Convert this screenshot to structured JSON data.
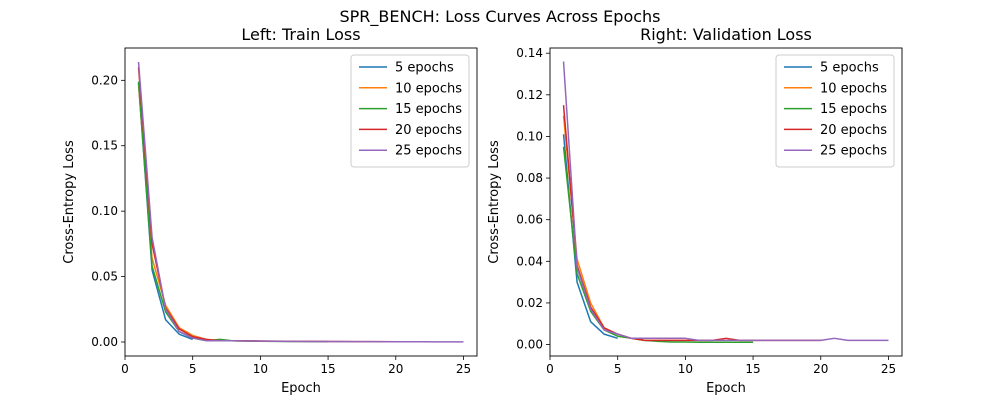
{
  "figure": {
    "suptitle": "SPR_BENCH: Loss Curves Across Epochs"
  },
  "chart_data": [
    {
      "type": "line",
      "title": "Left: Train Loss",
      "xlabel": "Epoch",
      "ylabel": "Cross-Entropy Loss",
      "xlim": [
        0,
        26
      ],
      "ylim": [
        -0.0107,
        0.2247
      ],
      "xticks": [
        0,
        5,
        10,
        15,
        20,
        25
      ],
      "yticks": [
        0.0,
        0.05,
        0.1,
        0.15,
        0.2
      ],
      "ytick_labels": [
        "0.00",
        "0.05",
        "0.10",
        "0.15",
        "0.20"
      ],
      "legend_position": "top-right",
      "series": [
        {
          "name": "5 epochs",
          "color": "#1f77b4",
          "x": [
            1,
            2,
            3,
            4,
            5
          ],
          "values": [
            0.198,
            0.055,
            0.017,
            0.006,
            0.002
          ]
        },
        {
          "name": "10 epochs",
          "color": "#ff7f0e",
          "x": [
            1,
            2,
            3,
            4,
            5,
            6,
            7,
            8,
            9,
            10
          ],
          "values": [
            0.197,
            0.064,
            0.028,
            0.011,
            0.005,
            0.002,
            0.001,
            0.001,
            0.0008,
            0.0006
          ]
        },
        {
          "name": "15 epochs",
          "color": "#2ca02c",
          "x": [
            1,
            2,
            3,
            4,
            5,
            6,
            7,
            8,
            9,
            10,
            11,
            12,
            13,
            14,
            15
          ],
          "values": [
            0.199,
            0.058,
            0.023,
            0.008,
            0.003,
            0.001,
            0.002,
            0.0009,
            0.0008,
            0.0006,
            0.0005,
            0.0004,
            0.0004,
            0.0003,
            0.0003
          ]
        },
        {
          "name": "20 epochs",
          "color": "#d62728",
          "x": [
            1,
            2,
            3,
            4,
            5,
            6,
            7,
            8,
            9,
            10,
            11,
            12,
            13,
            14,
            15,
            16,
            17,
            18,
            19,
            20
          ],
          "values": [
            0.21,
            0.075,
            0.026,
            0.01,
            0.004,
            0.002,
            0.001,
            0.001,
            0.0009,
            0.0008,
            0.0007,
            0.0006,
            0.0005,
            0.0005,
            0.0004,
            0.0004,
            0.0003,
            0.0003,
            0.0003,
            0.0002
          ]
        },
        {
          "name": "25 epochs",
          "color": "#9467bd",
          "x": [
            1,
            2,
            3,
            4,
            5,
            6,
            7,
            8,
            9,
            10,
            11,
            12,
            13,
            14,
            15,
            16,
            17,
            18,
            19,
            20,
            21,
            22,
            23,
            24,
            25
          ],
          "values": [
            0.214,
            0.08,
            0.025,
            0.008,
            0.003,
            0.001,
            0.001,
            0.001,
            0.0008,
            0.0007,
            0.0006,
            0.0005,
            0.0005,
            0.0004,
            0.0004,
            0.0003,
            0.0003,
            0.0003,
            0.0002,
            0.0002,
            0.0002,
            0.0002,
            0.0001,
            0.0001,
            0.0001
          ]
        }
      ]
    },
    {
      "type": "line",
      "title": "Right: Validation Loss",
      "xlabel": "Epoch",
      "ylabel": "Cross-Entropy Loss",
      "xlim": [
        0,
        26
      ],
      "ylim": [
        -0.0055,
        0.1425
      ],
      "xticks": [
        0,
        5,
        10,
        15,
        20,
        25
      ],
      "yticks": [
        0.0,
        0.02,
        0.04,
        0.06,
        0.08,
        0.1,
        0.12,
        0.14
      ],
      "ytick_labels": [
        "0.00",
        "0.02",
        "0.04",
        "0.06",
        "0.08",
        "0.10",
        "0.12",
        "0.14"
      ],
      "legend_position": "top-right",
      "series": [
        {
          "name": "5 epochs",
          "color": "#1f77b4",
          "x": [
            1,
            2,
            3,
            4,
            5
          ],
          "values": [
            0.101,
            0.03,
            0.011,
            0.005,
            0.003
          ]
        },
        {
          "name": "10 epochs",
          "color": "#ff7f0e",
          "x": [
            1,
            2,
            3,
            4,
            5,
            6,
            7,
            8,
            9,
            10
          ],
          "values": [
            0.11,
            0.041,
            0.02,
            0.008,
            0.005,
            0.003,
            0.002,
            0.002,
            0.002,
            0.002
          ]
        },
        {
          "name": "15 epochs",
          "color": "#2ca02c",
          "x": [
            1,
            2,
            3,
            4,
            5,
            6,
            7,
            8,
            9,
            10,
            11,
            12,
            13,
            14,
            15
          ],
          "values": [
            0.095,
            0.034,
            0.016,
            0.007,
            0.004,
            0.003,
            0.002,
            0.0015,
            0.0012,
            0.0012,
            0.0011,
            0.0011,
            0.0011,
            0.0011,
            0.0011
          ]
        },
        {
          "name": "20 epochs",
          "color": "#d62728",
          "x": [
            1,
            2,
            3,
            4,
            5,
            6,
            7,
            8,
            9,
            10,
            11,
            12,
            13,
            14,
            15,
            16,
            17,
            18,
            19,
            20
          ],
          "values": [
            0.115,
            0.038,
            0.018,
            0.008,
            0.005,
            0.003,
            0.002,
            0.002,
            0.002,
            0.002,
            0.002,
            0.002,
            0.003,
            0.002,
            0.002,
            0.002,
            0.002,
            0.002,
            0.002,
            0.002
          ]
        },
        {
          "name": "25 epochs",
          "color": "#9467bd",
          "x": [
            1,
            2,
            3,
            4,
            5,
            6,
            7,
            8,
            9,
            10,
            11,
            12,
            13,
            14,
            15,
            16,
            17,
            18,
            19,
            20,
            21,
            22,
            23,
            24,
            25
          ],
          "values": [
            0.136,
            0.037,
            0.017,
            0.007,
            0.005,
            0.003,
            0.003,
            0.003,
            0.003,
            0.003,
            0.002,
            0.002,
            0.002,
            0.002,
            0.002,
            0.002,
            0.002,
            0.002,
            0.002,
            0.002,
            0.003,
            0.002,
            0.002,
            0.002,
            0.002
          ]
        }
      ]
    }
  ]
}
